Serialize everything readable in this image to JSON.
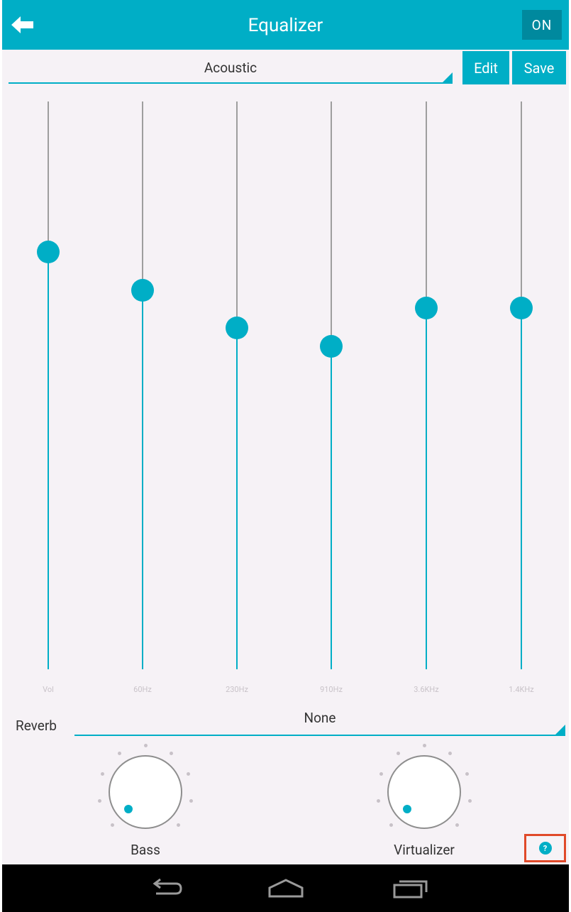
{
  "header": {
    "title": "Equalizer",
    "power_label": "ON",
    "back_icon": "arrow-left-icon"
  },
  "preset": {
    "selected": "Acoustic",
    "edit_label": "Edit",
    "save_label": "Save"
  },
  "bands": [
    {
      "label": "Vol",
      "level": 0.735
    },
    {
      "label": "60Hz",
      "level": 0.668
    },
    {
      "label": "230Hz",
      "level": 0.601
    },
    {
      "label": "910Hz",
      "level": 0.569
    },
    {
      "label": "3.6KHz",
      "level": 0.636
    },
    {
      "label": "1.4KHz",
      "level": 0.636
    }
  ],
  "reverb": {
    "label": "Reverb",
    "selected": "None"
  },
  "effects": [
    {
      "label": "Bass",
      "level": 0
    },
    {
      "label": "Virtualizer",
      "level": 0
    }
  ],
  "help_icon": "question-icon",
  "nav": [
    "back-icon",
    "home-icon",
    "recent-apps-icon"
  ],
  "colors": {
    "accent": "#00aec6",
    "power_bg": "#00899e",
    "background": "#f6f2f6",
    "highlight": "#e04a2a"
  }
}
